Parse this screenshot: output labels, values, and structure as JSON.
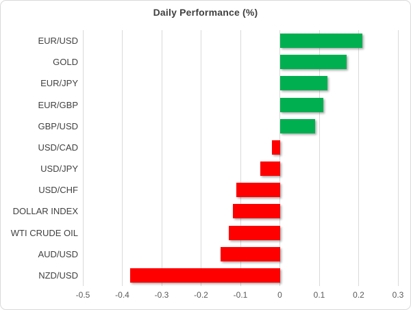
{
  "chart_data": {
    "type": "bar",
    "orientation": "horizontal",
    "title": "Daily Performance (%)",
    "categories": [
      "EUR/USD",
      "GOLD",
      "EUR/JPY",
      "EUR/GBP",
      "GBP/USD",
      "USD/CAD",
      "USD/JPY",
      "USD/CHF",
      "DOLLAR INDEX",
      "WTI CRUDE OIL",
      "AUD/USD",
      "NZD/USD"
    ],
    "values": [
      0.21,
      0.17,
      0.12,
      0.11,
      0.09,
      -0.02,
      -0.05,
      -0.11,
      -0.12,
      -0.13,
      -0.15,
      -0.38
    ],
    "xlabel": "",
    "ylabel": "",
    "xlim": [
      -0.5,
      0.3
    ],
    "xticks": [
      -0.5,
      -0.4,
      -0.3,
      -0.2,
      -0.1,
      0,
      0.1,
      0.2,
      0.3
    ],
    "xtick_labels": [
      "-0.5",
      "-0.4",
      "-0.3",
      "-0.2",
      "-0.1",
      "0",
      "0.1",
      "0.2",
      "0.3"
    ],
    "grid": true,
    "legend": false,
    "colors": {
      "positive": "#00B050",
      "negative": "#FF0000",
      "gridline": "#D9D9D9",
      "border": "#D9D9D9",
      "background": "#FFFFFF",
      "title_text": "#404040",
      "category_text": "#404040",
      "tick_text": "#595959"
    }
  }
}
